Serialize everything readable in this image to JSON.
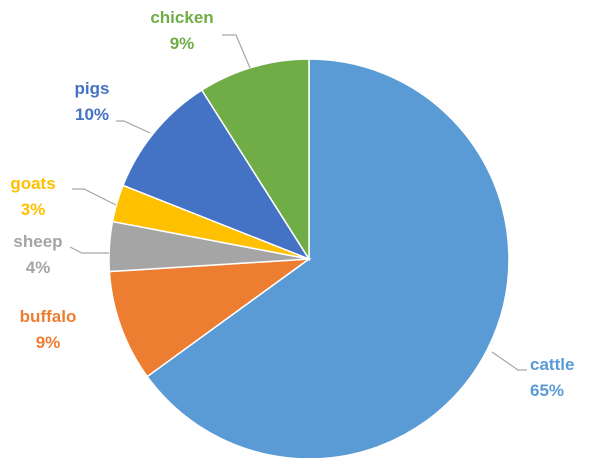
{
  "chart_data": {
    "type": "pie",
    "title": "",
    "start_angle_deg": 0,
    "direction": "clockwise",
    "slices": [
      {
        "label": "cattle",
        "value": 65,
        "display": "65%",
        "color": "#5b9bd5"
      },
      {
        "label": "buffalo",
        "value": 9,
        "display": "9%",
        "color": "#ed7d31"
      },
      {
        "label": "sheep",
        "value": 4,
        "display": "4%",
        "color": "#a5a5a5"
      },
      {
        "label": "goats",
        "value": 3,
        "display": "3%",
        "color": "#ffc000"
      },
      {
        "label": "pigs",
        "value": 10,
        "display": "10%",
        "color": "#4472c4"
      },
      {
        "label": "chicken",
        "value": 9,
        "display": "9%",
        "color": "#70ad47"
      }
    ],
    "legend": "none",
    "data_labels": "outside with leader lines"
  }
}
